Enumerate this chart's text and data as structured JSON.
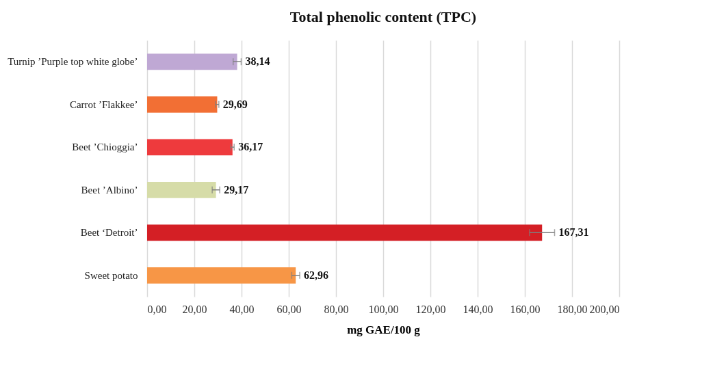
{
  "chart_data": {
    "type": "bar",
    "orientation": "horizontal",
    "title": "Total phenolic content (TPC)",
    "xlabel": "mg GAE/100 g",
    "categories": [
      "Turnip ’Purple top white globe’",
      "Carrot ’Flakkee’",
      "Beet ’Chioggia’",
      "Beet ’Albino’",
      "Beet ‘Detroit’",
      "Sweet potato"
    ],
    "values": [
      38.14,
      29.69,
      36.17,
      29.17,
      167.31,
      62.96
    ],
    "colors": [
      "#bfa8d4",
      "#f26f34",
      "#ee3a3d",
      "#d6dca8",
      "#d41f25",
      "#f79646"
    ],
    "errors": [
      1.7,
      0.7,
      0.7,
      1.6,
      5.3,
      1.7
    ],
    "value_labels": [
      "38,14",
      "29,69",
      "36,17",
      "29,17",
      "167,31",
      "62,96"
    ],
    "xlim": [
      0,
      200
    ],
    "xticks": [
      {
        "value": 0,
        "label": "0,00"
      },
      {
        "value": 20,
        "label": "20,00"
      },
      {
        "value": 40,
        "label": "40,00"
      },
      {
        "value": 60,
        "label": "60,00"
      },
      {
        "value": 80,
        "label": "80,00"
      },
      {
        "value": 100,
        "label": "100,00"
      },
      {
        "value": 120,
        "label": "120,00"
      },
      {
        "value": 140,
        "label": "140,00"
      },
      {
        "value": 160,
        "label": "160,00"
      },
      {
        "value": 180,
        "label": "180,00"
      },
      {
        "value": 200,
        "label": "200,00"
      }
    ],
    "grid": "x"
  }
}
